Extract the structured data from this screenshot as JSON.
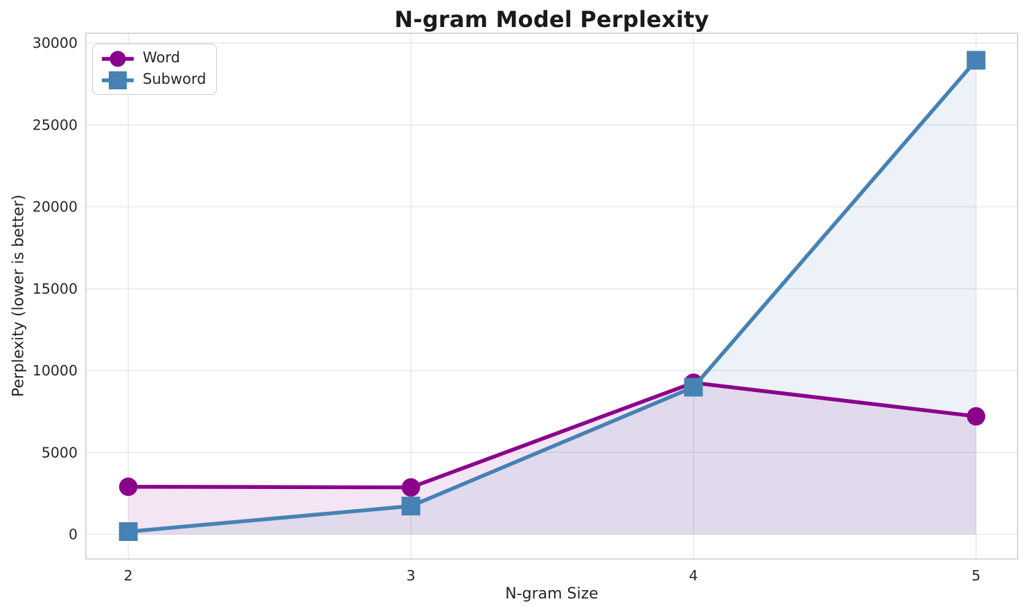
{
  "chart_data": {
    "type": "line",
    "title": "N-gram Model Perplexity",
    "xlabel": "N-gram Size",
    "ylabel": "Perplexity (lower is better)",
    "x": [
      2,
      3,
      4,
      5
    ],
    "xtick_labels": [
      "2",
      "3",
      "4",
      "5"
    ],
    "yticks": [
      0,
      5000,
      10000,
      15000,
      20000,
      25000,
      30000
    ],
    "xlim": [
      1.85,
      5.147
    ],
    "ylim": [
      -1500,
      30600
    ],
    "grid": true,
    "legend_position": "upper left",
    "series": [
      {
        "name": "Word",
        "marker": "circle",
        "color": "#8B008B",
        "values": [
          2910,
          2870,
          9260,
          7210
        ],
        "fill_to_zero": true,
        "fill_opacity": 0.1
      },
      {
        "name": "Subword",
        "marker": "square",
        "color": "#4682B4",
        "values": [
          170,
          1730,
          8990,
          28950
        ],
        "fill_to_zero": true,
        "fill_opacity": 0.1
      }
    ],
    "colors": {
      "grid": "#e8e8e8",
      "spine": "#cccccc",
      "text": "#262626",
      "background": "#ffffff"
    }
  }
}
